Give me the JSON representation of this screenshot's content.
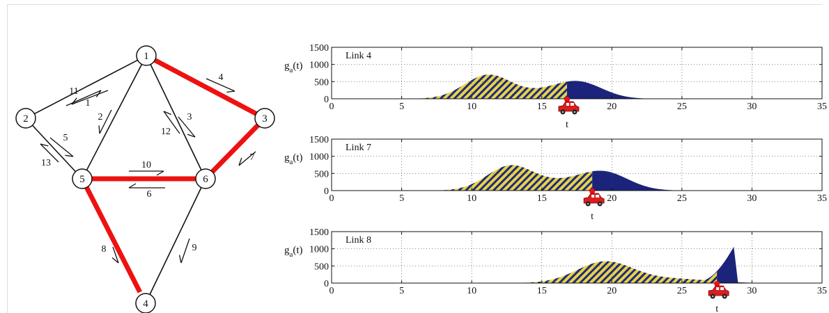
{
  "network": {
    "nodes": [
      {
        "id": "1",
        "label": "1"
      },
      {
        "id": "2",
        "label": "2"
      },
      {
        "id": "3",
        "label": "3"
      },
      {
        "id": "4",
        "label": "4"
      },
      {
        "id": "5",
        "label": "5"
      },
      {
        "id": "6",
        "label": "6"
      }
    ],
    "edges": [
      {
        "from": "1",
        "to": "2",
        "path": false
      },
      {
        "from": "1",
        "to": "3",
        "path": true
      },
      {
        "from": "1",
        "to": "5",
        "path": false
      },
      {
        "from": "1",
        "to": "6",
        "path": false
      },
      {
        "from": "2",
        "to": "5",
        "path": false
      },
      {
        "from": "3",
        "to": "6",
        "path": true
      },
      {
        "from": "5",
        "to": "6",
        "path": true
      },
      {
        "from": "5",
        "to": "4",
        "path": true
      },
      {
        "from": "6",
        "to": "4",
        "path": false
      }
    ],
    "link_labels": [
      "11",
      "1",
      "2",
      "4",
      "3",
      "12",
      "5",
      "13",
      "10",
      "6",
      "7",
      "8",
      "9"
    ],
    "path_color": "#ee1111"
  },
  "chart_data": [
    {
      "type": "area",
      "title": "Link 4",
      "ylabel_main": "g",
      "ylabel_sub": "a",
      "ylabel_tail": "(t)",
      "xlabel": "t",
      "xlim": [
        0,
        35
      ],
      "ylim": [
        0,
        1500
      ],
      "xticks": [
        "0",
        "5",
        "10",
        "15",
        "20",
        "25",
        "30",
        "35"
      ],
      "yticks": [
        "0",
        "500",
        "1000",
        "1500"
      ],
      "grid": true,
      "vehicle_t": 16.8,
      "peaks": [
        {
          "t": 11.2,
          "h": 700,
          "w": 1.7
        },
        {
          "t": 17.6,
          "h": 490,
          "w": 1.7
        },
        {
          "t": 15.0,
          "h": 120,
          "w": 1.5
        }
      ],
      "colors": {
        "traversed": "#e8d24a",
        "stripe": "#1e2a7a",
        "remaining": "#1b237a"
      }
    },
    {
      "type": "area",
      "title": "Link 7",
      "ylabel_main": "g",
      "ylabel_sub": "a",
      "ylabel_tail": "(t)",
      "xlabel": "t",
      "xlim": [
        0,
        35
      ],
      "ylim": [
        0,
        1500
      ],
      "xticks": [
        "0",
        "5",
        "10",
        "15",
        "20",
        "25",
        "30",
        "35"
      ],
      "yticks": [
        "0",
        "500",
        "1000",
        "1500"
      ],
      "grid": true,
      "vehicle_t": 18.6,
      "peaks": [
        {
          "t": 12.8,
          "h": 730,
          "w": 1.7
        },
        {
          "t": 19.3,
          "h": 560,
          "w": 1.8
        },
        {
          "t": 16.2,
          "h": 140,
          "w": 1.5
        }
      ],
      "colors": {
        "traversed": "#e8d24a",
        "stripe": "#1e2a7a",
        "remaining": "#1b237a"
      }
    },
    {
      "type": "area",
      "title": "Link 8",
      "ylabel_main": "g",
      "ylabel_sub": "a",
      "ylabel_tail": "(t)",
      "xlabel": "t",
      "xlim": [
        0,
        35
      ],
      "ylim": [
        0,
        1500
      ],
      "xticks": [
        "0",
        "5",
        "10",
        "15",
        "20",
        "25",
        "30",
        "35"
      ],
      "yticks": [
        "0",
        "500",
        "1000",
        "1500"
      ],
      "grid": true,
      "vehicle_t": 27.5,
      "peaks": [
        {
          "t": 19.5,
          "h": 620,
          "w": 2.0
        },
        {
          "t": 24.5,
          "h": 120,
          "w": 2.5
        }
      ],
      "spike": {
        "start": 26.5,
        "peak_t": 28.7,
        "peak": 1180,
        "drop_t": 29.0
      },
      "colors": {
        "traversed": "#e8d24a",
        "stripe": "#1e2a7a",
        "remaining": "#1b237a"
      }
    }
  ]
}
